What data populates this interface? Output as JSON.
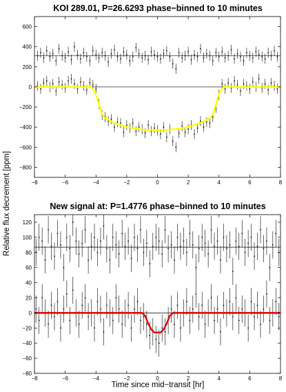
{
  "figure": {
    "shared_ylabel": "Relative flux decrement [ppm]",
    "shared_xlabel": "Time since mid−transit [hr]"
  },
  "chart_data": [
    {
      "type": "scatter",
      "title": "KOI 289.01, P=26.6293 phase−binned to 10 minutes",
      "xlabel": "Time since mid−transit [hr]",
      "ylabel": "Relative flux decrement [ppm]",
      "xlim": [
        -8,
        8
      ],
      "ylim": [
        -900,
        700
      ],
      "xticks": [
        -8,
        -6,
        -4,
        -2,
        0,
        2,
        4,
        6,
        8
      ],
      "yticks": [
        -800,
        -600,
        -400,
        -200,
        0,
        200,
        400,
        600
      ],
      "grid": false,
      "reference_lines": [
        0,
        310
      ],
      "model": {
        "color": "#ffff00",
        "x": [
          -8,
          -4.3,
          -4.1,
          -3.9,
          -3.7,
          -3.5,
          -3.0,
          -2.5,
          -2.0,
          -1.5,
          -1.0,
          -0.5,
          0,
          0.5,
          1.0,
          1.5,
          2.0,
          2.5,
          3.0,
          3.5,
          3.7,
          3.9,
          4.1,
          4.3,
          8
        ],
        "y": [
          0,
          0,
          -40,
          -120,
          -230,
          -300,
          -345,
          -375,
          -398,
          -413,
          -423,
          -430,
          -432,
          -430,
          -423,
          -413,
          -398,
          -375,
          -345,
          -300,
          -230,
          -120,
          -40,
          0,
          0
        ]
      },
      "series": [
        {
          "values_y_offset": 310,
          "x": [
            -7.8,
            -7.6,
            -7.4,
            -7.2,
            -7.0,
            -6.8,
            -6.6,
            -6.4,
            -6.2,
            -6.0,
            -5.8,
            -5.6,
            -5.4,
            -5.2,
            -5.0,
            -4.8,
            -4.6,
            -4.4,
            -4.2,
            -4.0,
            -3.8,
            -3.6,
            -3.4,
            -3.2,
            -3.0,
            -2.8,
            -2.6,
            -2.4,
            -2.2,
            -2.0,
            -1.8,
            -1.6,
            -1.4,
            -1.2,
            -1.0,
            -0.8,
            -0.6,
            -0.4,
            -0.2,
            0.0,
            0.2,
            0.4,
            0.6,
            0.8,
            1.0,
            1.2,
            1.4,
            1.6,
            1.8,
            2.0,
            2.2,
            2.4,
            2.6,
            2.8,
            3.0,
            3.2,
            3.4,
            3.6,
            3.8,
            4.0,
            4.2,
            4.4,
            4.6,
            4.8,
            5.0,
            5.2,
            5.4,
            5.6,
            5.8,
            6.0,
            6.2,
            6.4,
            6.6,
            6.8,
            7.0,
            7.2,
            7.4,
            7.6,
            7.8
          ],
          "y": [
            310,
            340,
            290,
            360,
            300,
            330,
            260,
            380,
            310,
            290,
            350,
            270,
            400,
            320,
            280,
            340,
            300,
            260,
            360,
            320,
            290,
            340,
            310,
            250,
            330,
            370,
            300,
            280,
            350,
            320,
            260,
            300,
            390,
            330,
            290,
            310,
            270,
            350,
            320,
            300,
            280,
            330,
            360,
            300,
            230,
            180,
            340,
            290,
            310,
            350,
            270,
            320,
            300,
            380,
            290,
            330,
            310,
            260,
            340,
            300,
            350,
            290,
            310,
            370,
            280,
            330,
            300,
            260,
            340,
            310,
            290,
            350,
            320,
            300,
            280,
            340,
            310,
            360,
            300
          ],
          "err": 50
        },
        {
          "x": [
            -7.8,
            -7.6,
            -7.4,
            -7.2,
            -7.0,
            -6.8,
            -6.6,
            -6.4,
            -6.2,
            -6.0,
            -5.8,
            -5.6,
            -5.4,
            -5.2,
            -5.0,
            -4.8,
            -4.6,
            -4.4,
            -4.2,
            -4.0,
            -3.8,
            -3.6,
            -3.4,
            -3.2,
            -3.0,
            -2.8,
            -2.6,
            -2.4,
            -2.2,
            -2.0,
            -1.8,
            -1.6,
            -1.4,
            -1.2,
            -1.0,
            -0.8,
            -0.6,
            -0.4,
            -0.2,
            0.0,
            0.2,
            0.4,
            0.6,
            0.8,
            1.0,
            1.2,
            1.4,
            1.6,
            1.8,
            2.0,
            2.2,
            2.4,
            2.6,
            2.8,
            3.0,
            3.2,
            3.4,
            3.6,
            3.8,
            4.0,
            4.2,
            4.4,
            4.6,
            4.8,
            5.0,
            5.2,
            5.4,
            5.6,
            5.8,
            6.0,
            6.2,
            6.4,
            6.6,
            6.8,
            7.0,
            7.2,
            7.4,
            7.6,
            7.8
          ],
          "y": [
            10,
            -20,
            40,
            60,
            0,
            30,
            -40,
            50,
            20,
            -10,
            60,
            80,
            30,
            -20,
            50,
            10,
            -30,
            40,
            20,
            -20,
            -170,
            -280,
            -300,
            -340,
            -320,
            -400,
            -350,
            -360,
            -450,
            -380,
            -410,
            -360,
            -440,
            -400,
            -420,
            -460,
            -380,
            -440,
            -410,
            -430,
            -470,
            -400,
            -500,
            -420,
            -540,
            -600,
            -460,
            -390,
            -450,
            -420,
            -380,
            -470,
            -410,
            -340,
            -400,
            -350,
            -360,
            -300,
            -210,
            -80,
            30,
            -20,
            40,
            -10,
            60,
            20,
            -40,
            30,
            10,
            -20,
            50,
            0,
            80,
            -10,
            30,
            -30,
            40,
            10,
            -20
          ],
          "err": 50
        }
      ]
    },
    {
      "type": "scatter",
      "title": "New signal at: P=1.4776 phase−binned to 10 minutes",
      "xlabel": "Time since mid−transit [hr]",
      "ylabel": "Relative flux decrement [ppm]",
      "xlim": [
        -8,
        8
      ],
      "ylim": [
        -80,
        130
      ],
      "xticks": [
        -8,
        -6,
        -4,
        -2,
        0,
        2,
        4,
        6,
        8
      ],
      "yticks": [
        -80,
        -60,
        -40,
        -20,
        0,
        20,
        40,
        60,
        80,
        100,
        120
      ],
      "grid": false,
      "reference_lines": [
        0,
        87
      ],
      "model": {
        "color": "#e00000",
        "x": [
          -8,
          -1.0,
          -0.8,
          -0.6,
          -0.4,
          -0.2,
          0,
          0.2,
          0.4,
          0.6,
          0.8,
          1.0,
          8
        ],
        "y": [
          0,
          0,
          -4,
          -14,
          -22,
          -26,
          -26,
          -26,
          -22,
          -14,
          -4,
          0,
          0
        ]
      },
      "series": [
        {
          "values_y_offset": 87,
          "x": [
            -7.9,
            -7.7,
            -7.5,
            -7.3,
            -7.1,
            -6.9,
            -6.7,
            -6.5,
            -6.3,
            -6.1,
            -5.9,
            -5.7,
            -5.5,
            -5.3,
            -5.1,
            -4.9,
            -4.7,
            -4.5,
            -4.3,
            -4.1,
            -3.9,
            -3.7,
            -3.5,
            -3.3,
            -3.1,
            -2.9,
            -2.7,
            -2.5,
            -2.3,
            -2.1,
            -1.9,
            -1.7,
            -1.5,
            -1.3,
            -1.1,
            -0.9,
            -0.7,
            -0.5,
            -0.3,
            -0.1,
            0.1,
            0.3,
            0.5,
            0.7,
            0.9,
            1.1,
            1.3,
            1.5,
            1.7,
            1.9,
            2.1,
            2.3,
            2.5,
            2.7,
            2.9,
            3.1,
            3.3,
            3.5,
            3.7,
            3.9,
            4.1,
            4.3,
            4.5,
            4.7,
            4.9,
            5.1,
            5.3,
            5.5,
            5.7,
            5.9,
            6.1,
            6.3,
            6.5,
            6.7,
            6.9,
            7.1,
            7.3,
            7.5,
            7.7,
            7.9
          ],
          "y": [
            80,
            100,
            95,
            70,
            110,
            88,
            75,
            105,
            90,
            60,
            100,
            85,
            120,
            95,
            78,
            92,
            110,
            70,
            88,
            100,
            80,
            95,
            115,
            85,
            70,
            100,
            90,
            78,
            105,
            88,
            95,
            72,
            100,
            85,
            110,
            80,
            92,
            65,
            88,
            100,
            95,
            78,
            110,
            85,
            90,
            70,
            100,
            88,
            95,
            80,
            105,
            90,
            60,
            85,
            100,
            92,
            78,
            110,
            88,
            95,
            70,
            100,
            85,
            90,
            55,
            95,
            88,
            105,
            80,
            92,
            100,
            75,
            88,
            110,
            85,
            95,
            60,
            90,
            105,
            80
          ],
          "err": 18
        },
        {
          "x": [
            -7.9,
            -7.7,
            -7.5,
            -7.3,
            -7.1,
            -6.9,
            -6.7,
            -6.5,
            -6.3,
            -6.1,
            -5.9,
            -5.7,
            -5.5,
            -5.3,
            -5.1,
            -4.9,
            -4.7,
            -4.5,
            -4.3,
            -4.1,
            -3.9,
            -3.7,
            -3.5,
            -3.3,
            -3.1,
            -2.9,
            -2.7,
            -2.5,
            -2.3,
            -2.1,
            -1.9,
            -1.7,
            -1.5,
            -1.3,
            -1.1,
            -0.9,
            -0.7,
            -0.5,
            -0.3,
            -0.1,
            0.1,
            0.3,
            0.5,
            0.7,
            0.9,
            1.1,
            1.3,
            1.5,
            1.7,
            1.9,
            2.1,
            2.3,
            2.5,
            2.7,
            2.9,
            3.1,
            3.3,
            3.5,
            3.7,
            3.9,
            4.1,
            4.3,
            4.5,
            4.7,
            4.9,
            5.1,
            5.3,
            5.5,
            5.7,
            5.9,
            6.1,
            6.3,
            6.5,
            6.7,
            6.9,
            7.1,
            7.3,
            7.5,
            7.7,
            7.9
          ],
          "y": [
            5,
            -10,
            20,
            0,
            -15,
            10,
            -5,
            15,
            -20,
            5,
            25,
            -10,
            30,
            0,
            -15,
            10,
            20,
            -5,
            0,
            -20,
            15,
            5,
            -25,
            10,
            0,
            -10,
            20,
            5,
            -15,
            0,
            10,
            -20,
            5,
            15,
            -10,
            -5,
            -15,
            -30,
            -25,
            -35,
            -40,
            -20,
            -25,
            -10,
            5,
            -15,
            10,
            -20,
            0,
            15,
            -10,
            5,
            25,
            -5,
            10,
            -15,
            0,
            20,
            -10,
            5,
            -25,
            10,
            0,
            15,
            -5,
            20,
            -10,
            5,
            0,
            -20,
            15,
            -5,
            10,
            -15,
            5,
            25,
            -10,
            0,
            15,
            -5
          ],
          "err": 18
        }
      ]
    }
  ]
}
